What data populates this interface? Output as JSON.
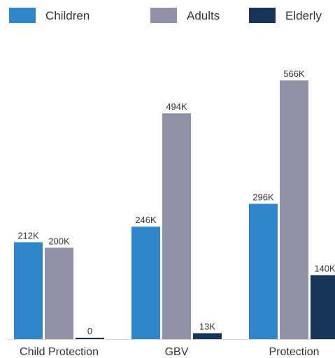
{
  "chart_data": {
    "type": "bar",
    "categories": [
      "Child Protection",
      "GBV",
      "Protection"
    ],
    "series": [
      {
        "name": "Children",
        "color": "#2f86c9",
        "values": [
          212000,
          246000,
          296000
        ],
        "labels": [
          "212K",
          "246K",
          "296K"
        ]
      },
      {
        "name": "Adults",
        "color": "#9192a6",
        "values": [
          200000,
          494000,
          566000
        ],
        "labels": [
          "200K",
          "494K",
          "566K"
        ]
      },
      {
        "name": "Elderly",
        "color": "#173459",
        "values": [
          0,
          13000,
          140000
        ],
        "labels": [
          "0",
          "13K",
          "140K"
        ]
      }
    ],
    "ylim": [
      0,
      600000
    ],
    "grid": false,
    "legend_position": "top"
  }
}
